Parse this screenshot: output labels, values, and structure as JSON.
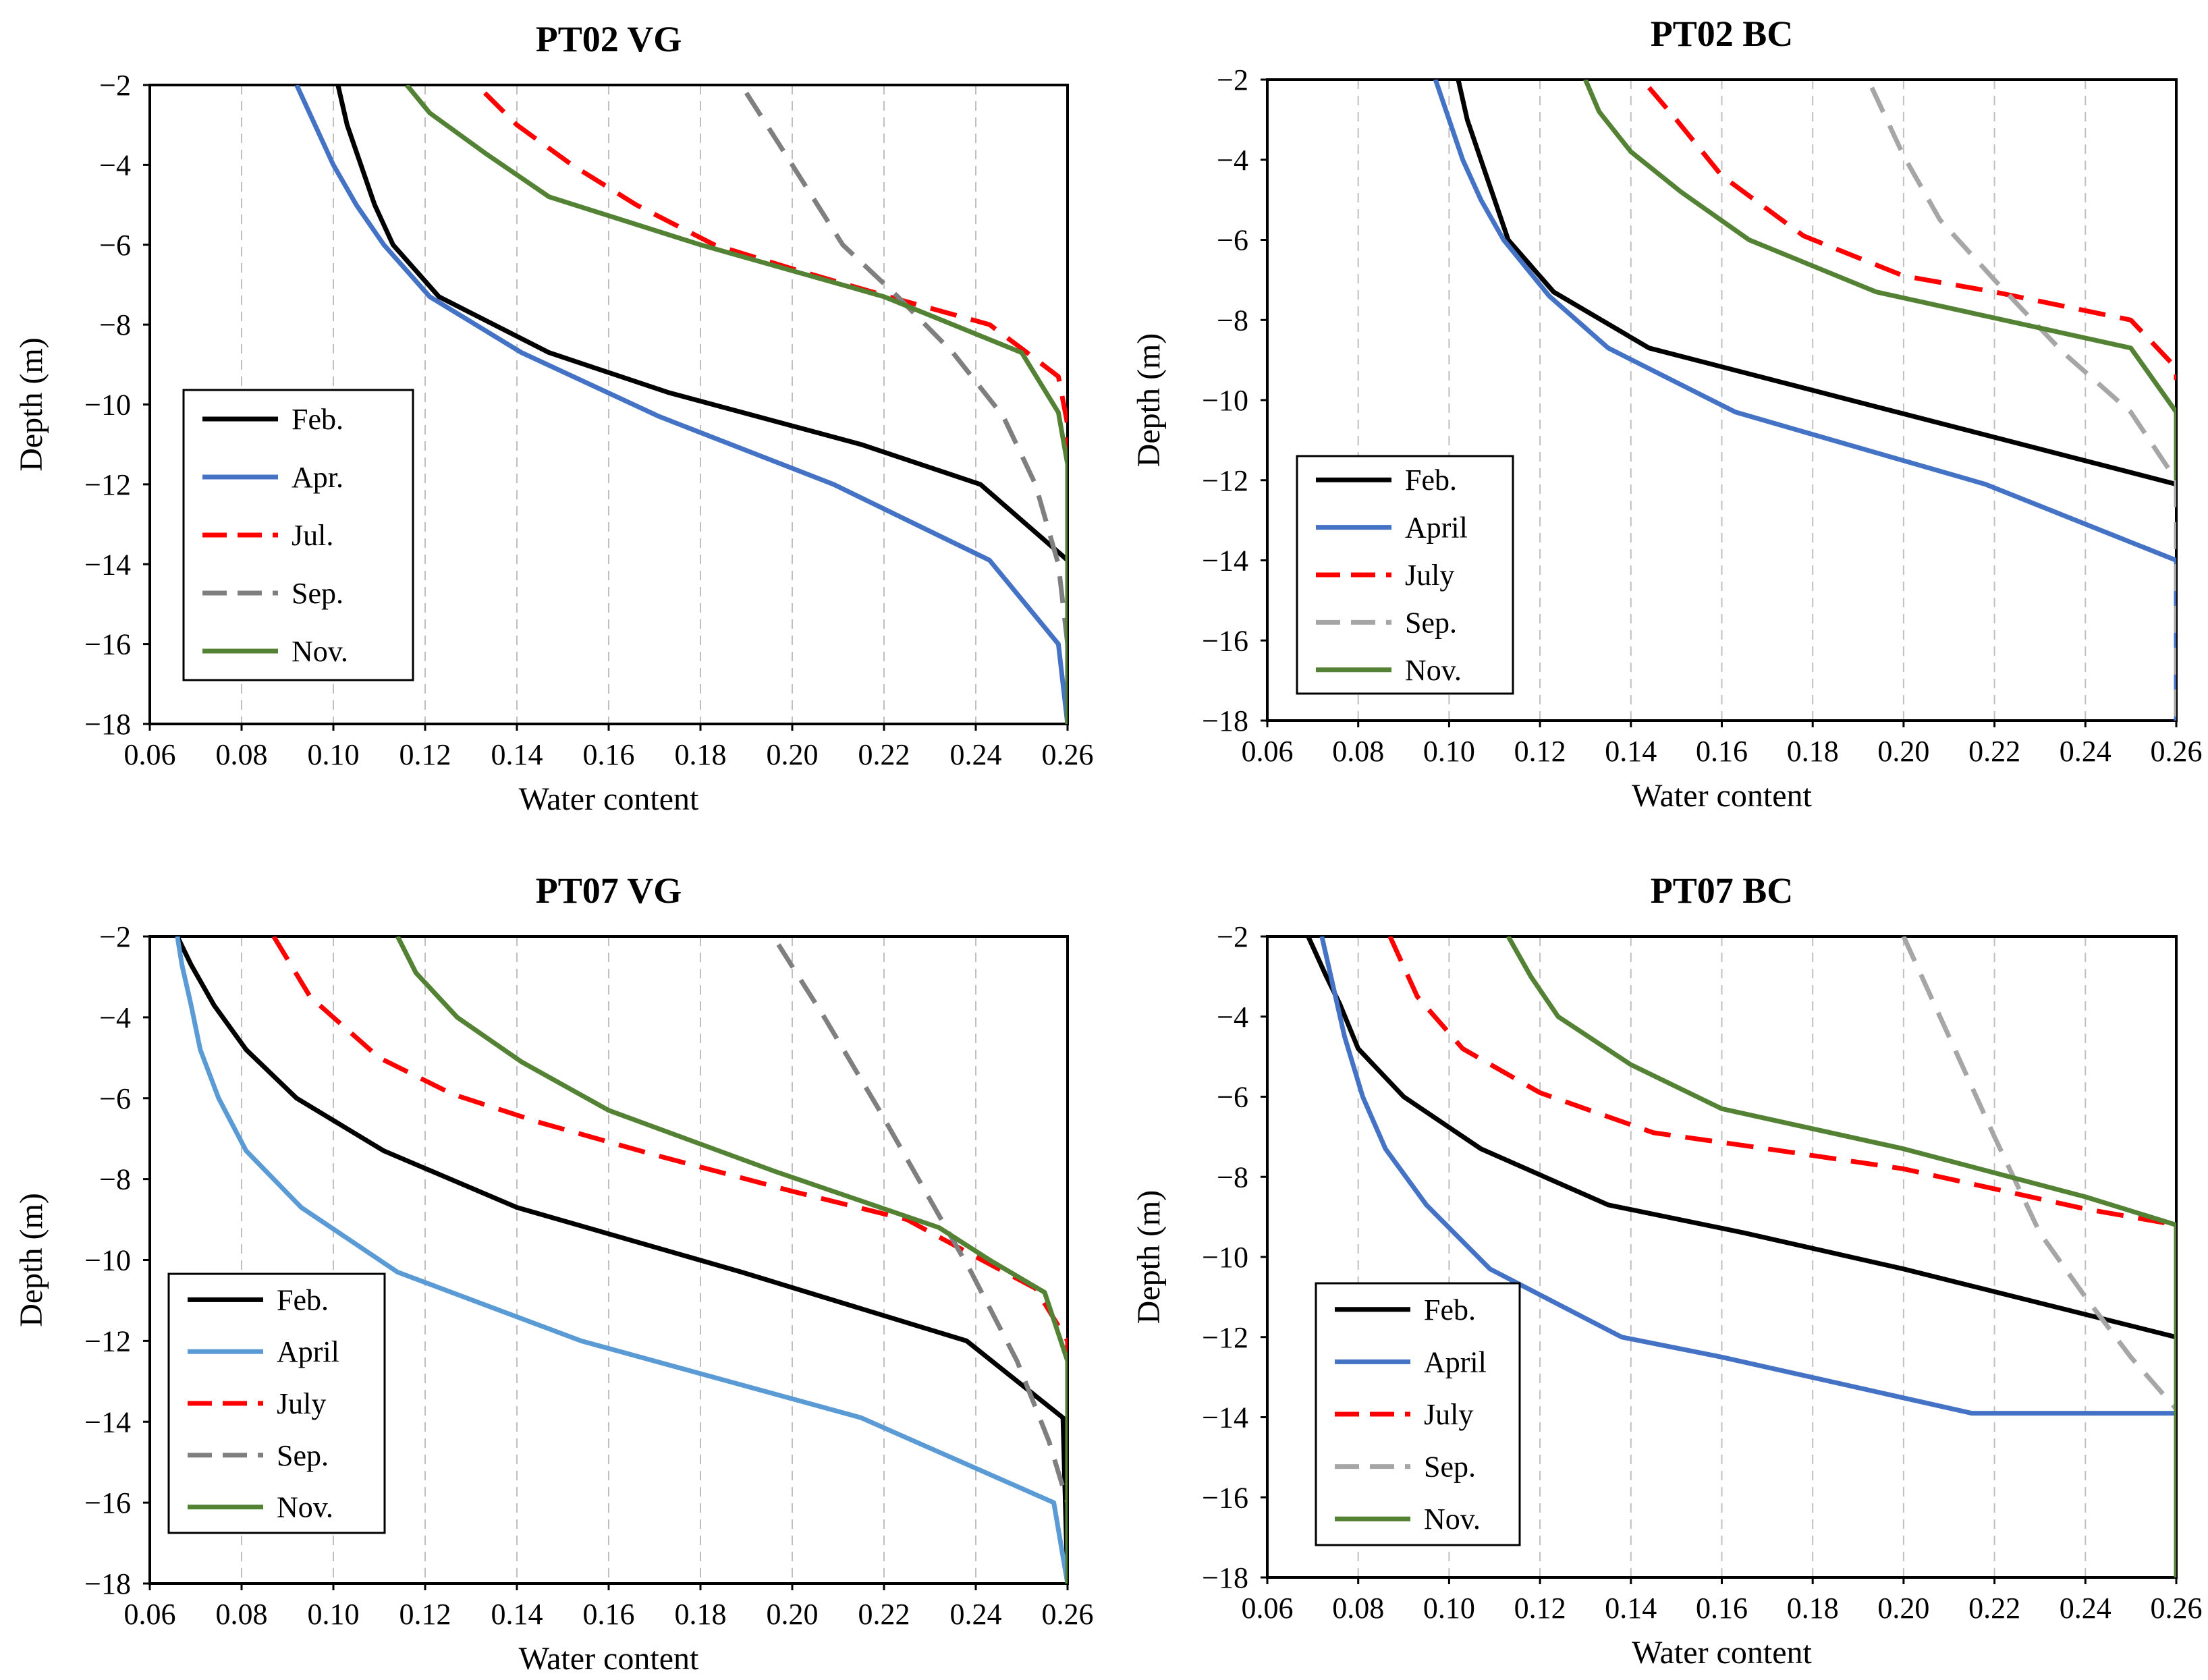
{
  "chart_data": [
    {
      "type": "line",
      "title": "PT02 VG",
      "xlabel": "Water content",
      "ylabel": "Depth (m)",
      "xlim": [
        0.06,
        0.26
      ],
      "ylim": [
        -18,
        -2
      ],
      "xticks": [
        "0.06",
        "0.08",
        "0.10",
        "0.12",
        "0.14",
        "0.16",
        "0.18",
        "0.20",
        "0.22",
        "0.24",
        "0.26"
      ],
      "yticks": [
        "-2",
        "-4",
        "-6",
        "-8",
        "-10",
        "-12",
        "-14",
        "-16",
        "-18"
      ],
      "grid": "vertical dashed",
      "legend_position": "lower-left",
      "series": [
        {
          "name": "Feb.",
          "color": "#000000",
          "dash": "solid",
          "points": [
            [
              0.101,
              -2
            ],
            [
              0.103,
              -3
            ],
            [
              0.106,
              -4
            ],
            [
              0.109,
              -5
            ],
            [
              0.113,
              -6
            ],
            [
              0.123,
              -7.3
            ],
            [
              0.147,
              -8.7
            ],
            [
              0.173,
              -9.7
            ],
            [
              0.215,
              -11
            ],
            [
              0.241,
              -12
            ],
            [
              0.26,
              -13.9
            ],
            [
              0.26,
              -18
            ]
          ]
        },
        {
          "name": "Apr.",
          "color": "#4472C4",
          "dash": "solid",
          "points": [
            [
              0.092,
              -2
            ],
            [
              0.096,
              -3
            ],
            [
              0.1,
              -4
            ],
            [
              0.105,
              -5
            ],
            [
              0.111,
              -6
            ],
            [
              0.121,
              -7.3
            ],
            [
              0.141,
              -8.7
            ],
            [
              0.171,
              -10.3
            ],
            [
              0.209,
              -12
            ],
            [
              0.243,
              -13.9
            ],
            [
              0.258,
              -16
            ],
            [
              0.26,
              -18
            ]
          ]
        },
        {
          "name": "Jul.",
          "color": "#FF0000",
          "dash": "dashed",
          "points": [
            [
              0.133,
              -2.2
            ],
            [
              0.14,
              -3
            ],
            [
              0.152,
              -4
            ],
            [
              0.166,
              -5
            ],
            [
              0.183,
              -6
            ],
            [
              0.2,
              -6.6
            ],
            [
              0.221,
              -7.3
            ],
            [
              0.243,
              -8
            ],
            [
              0.25,
              -8.6
            ],
            [
              0.258,
              -9.3
            ],
            [
              0.26,
              -10.5
            ],
            [
              0.26,
              -12
            ]
          ]
        },
        {
          "name": "Sep.",
          "color": "#7F7F7F",
          "dash": "dashed",
          "points": [
            [
              0.19,
              -2.2
            ],
            [
              0.2,
              -4
            ],
            [
              0.211,
              -6
            ],
            [
              0.223,
              -7.3
            ],
            [
              0.235,
              -8.7
            ],
            [
              0.246,
              -10.3
            ],
            [
              0.253,
              -12
            ],
            [
              0.258,
              -14
            ],
            [
              0.26,
              -16
            ],
            [
              0.26,
              -18
            ]
          ]
        },
        {
          "name": "Nov.",
          "color": "#548235",
          "dash": "solid",
          "points": [
            [
              0.116,
              -2
            ],
            [
              0.121,
              -2.7
            ],
            [
              0.133,
              -3.7
            ],
            [
              0.147,
              -4.8
            ],
            [
              0.18,
              -6
            ],
            [
              0.22,
              -7.3
            ],
            [
              0.25,
              -8.7
            ],
            [
              0.258,
              -10.2
            ],
            [
              0.26,
              -11.5
            ],
            [
              0.26,
              -18
            ]
          ]
        }
      ]
    },
    {
      "type": "line",
      "title": "PT02 BC",
      "xlabel": "Water content",
      "ylabel": "Depth (m)",
      "xlim": [
        0.06,
        0.26
      ],
      "ylim": [
        -18,
        -2
      ],
      "xticks": [
        "0.06",
        "0.08",
        "0.10",
        "0.12",
        "0.14",
        "0.16",
        "0.18",
        "0.20",
        "0.22",
        "0.24",
        "0.26"
      ],
      "yticks": [
        "-2",
        "-4",
        "-6",
        "-8",
        "-10",
        "-12",
        "-14",
        "-16",
        "-18"
      ],
      "grid": "vertical dashed",
      "legend_position": "lower-left",
      "series": [
        {
          "name": "Feb.",
          "color": "#000000",
          "dash": "solid",
          "points": [
            [
              0.102,
              -2
            ],
            [
              0.104,
              -3
            ],
            [
              0.107,
              -4
            ],
            [
              0.11,
              -5
            ],
            [
              0.113,
              -6
            ],
            [
              0.123,
              -7.3
            ],
            [
              0.144,
              -8.7
            ],
            [
              0.26,
              -12.1
            ]
          ]
        },
        {
          "name": "April",
          "color": "#4472C4",
          "dash": "solid",
          "points": [
            [
              0.097,
              -2
            ],
            [
              0.1,
              -3
            ],
            [
              0.103,
              -4
            ],
            [
              0.107,
              -5
            ],
            [
              0.112,
              -6
            ],
            [
              0.122,
              -7.4
            ],
            [
              0.135,
              -8.7
            ],
            [
              0.163,
              -10.3
            ],
            [
              0.218,
              -12.1
            ],
            [
              0.26,
              -14
            ],
            [
              0.26,
              -18
            ]
          ]
        },
        {
          "name": "July",
          "color": "#FF0000",
          "dash": "dashed",
          "points": [
            [
              0.144,
              -2.2
            ],
            [
              0.15,
              -3
            ],
            [
              0.16,
              -4.4
            ],
            [
              0.178,
              -5.9
            ],
            [
              0.2,
              -6.9
            ],
            [
              0.22,
              -7.3
            ],
            [
              0.25,
              -8
            ],
            [
              0.26,
              -9.2
            ],
            [
              0.26,
              -9.5
            ]
          ]
        },
        {
          "name": "Sep.",
          "color": "#A6A6A6",
          "dash": "dashed",
          "points": [
            [
              0.193,
              -2.2
            ],
            [
              0.2,
              -3.9
            ],
            [
              0.208,
              -5.5
            ],
            [
              0.22,
              -7
            ],
            [
              0.235,
              -8.8
            ],
            [
              0.25,
              -10.3
            ],
            [
              0.26,
              -12
            ],
            [
              0.26,
              -18
            ]
          ]
        },
        {
          "name": "Nov.",
          "color": "#548235",
          "dash": "solid",
          "points": [
            [
              0.13,
              -2
            ],
            [
              0.133,
              -2.8
            ],
            [
              0.14,
              -3.8
            ],
            [
              0.151,
              -4.8
            ],
            [
              0.166,
              -6
            ],
            [
              0.194,
              -7.3
            ],
            [
              0.25,
              -8.7
            ],
            [
              0.26,
              -10.3
            ],
            [
              0.26,
              -12
            ]
          ]
        }
      ]
    },
    {
      "type": "line",
      "title": "PT07 VG",
      "xlabel": "Water content",
      "ylabel": "Depth (m)",
      "xlim": [
        0.06,
        0.26
      ],
      "ylim": [
        -18,
        -2
      ],
      "xticks": [
        "0.06",
        "0.08",
        "0.10",
        "0.12",
        "0.14",
        "0.16",
        "0.18",
        "0.20",
        "0.22",
        "0.24",
        "0.26"
      ],
      "yticks": [
        "-2",
        "-4",
        "-6",
        "-8",
        "-10",
        "-12",
        "-14",
        "-16",
        "-18"
      ],
      "grid": "vertical dashed",
      "legend_position": "lower-left",
      "series": [
        {
          "name": "Feb.",
          "color": "#000000",
          "dash": "solid",
          "points": [
            [
              0.066,
              -2
            ],
            [
              0.069,
              -2.7
            ],
            [
              0.074,
              -3.7
            ],
            [
              0.081,
              -4.8
            ],
            [
              0.092,
              -6
            ],
            [
              0.111,
              -7.3
            ],
            [
              0.14,
              -8.7
            ],
            [
              0.189,
              -10.3
            ],
            [
              0.238,
              -12
            ],
            [
              0.259,
              -13.9
            ],
            [
              0.26,
              -18
            ]
          ]
        },
        {
          "name": "April",
          "color": "#5B9BD5",
          "dash": "solid",
          "points": [
            [
              0.066,
              -2
            ],
            [
              0.067,
              -2.7
            ],
            [
              0.069,
              -3.7
            ],
            [
              0.071,
              -4.8
            ],
            [
              0.075,
              -6
            ],
            [
              0.081,
              -7.3
            ],
            [
              0.093,
              -8.7
            ],
            [
              0.114,
              -10.3
            ],
            [
              0.154,
              -12
            ],
            [
              0.215,
              -13.9
            ],
            [
              0.257,
              -16
            ],
            [
              0.26,
              -18
            ]
          ]
        },
        {
          "name": "July",
          "color": "#FF0000",
          "dash": "dashed",
          "points": [
            [
              0.087,
              -2
            ],
            [
              0.095,
              -3.5
            ],
            [
              0.11,
              -5
            ],
            [
              0.126,
              -5.9
            ],
            [
              0.145,
              -6.6
            ],
            [
              0.17,
              -7.4
            ],
            [
              0.2,
              -8.3
            ],
            [
              0.225,
              -9
            ],
            [
              0.238,
              -9.8
            ],
            [
              0.253,
              -10.7
            ],
            [
              0.26,
              -12
            ],
            [
              0.26,
              -18
            ]
          ]
        },
        {
          "name": "Sep.",
          "color": "#7F7F7F",
          "dash": "dashed",
          "points": [
            [
              0.197,
              -2.2
            ],
            [
              0.207,
              -4
            ],
            [
              0.219,
              -6.3
            ],
            [
              0.229,
              -8.3
            ],
            [
              0.239,
              -10.3
            ],
            [
              0.249,
              -12.5
            ],
            [
              0.256,
              -14.5
            ],
            [
              0.26,
              -16
            ],
            [
              0.26,
              -18
            ]
          ]
        },
        {
          "name": "Nov.",
          "color": "#548235",
          "dash": "solid",
          "points": [
            [
              0.114,
              -2
            ],
            [
              0.118,
              -2.9
            ],
            [
              0.127,
              -4
            ],
            [
              0.141,
              -5.1
            ],
            [
              0.16,
              -6.3
            ],
            [
              0.196,
              -7.8
            ],
            [
              0.232,
              -9.2
            ],
            [
              0.243,
              -10
            ],
            [
              0.255,
              -10.8
            ],
            [
              0.26,
              -12.5
            ],
            [
              0.26,
              -18
            ]
          ]
        }
      ]
    },
    {
      "type": "line",
      "title": "PT07 BC",
      "xlabel": "Water content",
      "ylabel": "Depth (m)",
      "xlim": [
        0.06,
        0.26
      ],
      "ylim": [
        -18,
        -2
      ],
      "xticks": [
        "0.06",
        "0.08",
        "0.10",
        "0.12",
        "0.14",
        "0.16",
        "0.18",
        "0.20",
        "0.22",
        "0.24",
        "0.26"
      ],
      "yticks": [
        "-2",
        "-4",
        "-6",
        "-8",
        "-10",
        "-12",
        "-14",
        "-16",
        "-18"
      ],
      "grid": "vertical dashed",
      "legend_position": "lower-left",
      "series": [
        {
          "name": "Feb.",
          "color": "#000000",
          "dash": "solid",
          "points": [
            [
              0.069,
              -2
            ],
            [
              0.073,
              -3
            ],
            [
              0.076,
              -3.7
            ],
            [
              0.08,
              -4.8
            ],
            [
              0.09,
              -6
            ],
            [
              0.107,
              -7.3
            ],
            [
              0.135,
              -8.7
            ],
            [
              0.165,
              -9.4
            ],
            [
              0.2,
              -10.3
            ],
            [
              0.26,
              -12
            ]
          ]
        },
        {
          "name": "April",
          "color": "#4472C4",
          "dash": "solid",
          "points": [
            [
              0.072,
              -2
            ],
            [
              0.074,
              -3
            ],
            [
              0.077,
              -4.5
            ],
            [
              0.081,
              -6
            ],
            [
              0.086,
              -7.3
            ],
            [
              0.095,
              -8.7
            ],
            [
              0.109,
              -10.3
            ],
            [
              0.138,
              -12
            ],
            [
              0.16,
              -12.5
            ],
            [
              0.215,
              -13.9
            ],
            [
              0.26,
              -13.9
            ],
            [
              0.26,
              -18
            ]
          ]
        },
        {
          "name": "July",
          "color": "#FF0000",
          "dash": "dashed",
          "points": [
            [
              0.087,
              -2
            ],
            [
              0.093,
              -3.5
            ],
            [
              0.103,
              -4.8
            ],
            [
              0.12,
              -5.9
            ],
            [
              0.145,
              -6.9
            ],
            [
              0.17,
              -7.3
            ],
            [
              0.2,
              -7.8
            ],
            [
              0.24,
              -8.8
            ],
            [
              0.26,
              -9.2
            ],
            [
              0.26,
              -9.5
            ]
          ]
        },
        {
          "name": "Sep.",
          "color": "#A6A6A6",
          "dash": "dashed",
          "points": [
            [
              0.2,
              -2
            ],
            [
              0.21,
              -4.5
            ],
            [
              0.22,
              -7
            ],
            [
              0.23,
              -9.4
            ],
            [
              0.24,
              -11
            ],
            [
              0.25,
              -12.5
            ],
            [
              0.26,
              -13.8
            ]
          ]
        },
        {
          "name": "Nov.",
          "color": "#548235",
          "dash": "solid",
          "points": [
            [
              0.113,
              -2
            ],
            [
              0.118,
              -3
            ],
            [
              0.124,
              -4
            ],
            [
              0.14,
              -5.2
            ],
            [
              0.16,
              -6.3
            ],
            [
              0.2,
              -7.3
            ],
            [
              0.24,
              -8.5
            ],
            [
              0.26,
              -9.2
            ],
            [
              0.26,
              -18
            ]
          ]
        }
      ]
    }
  ]
}
